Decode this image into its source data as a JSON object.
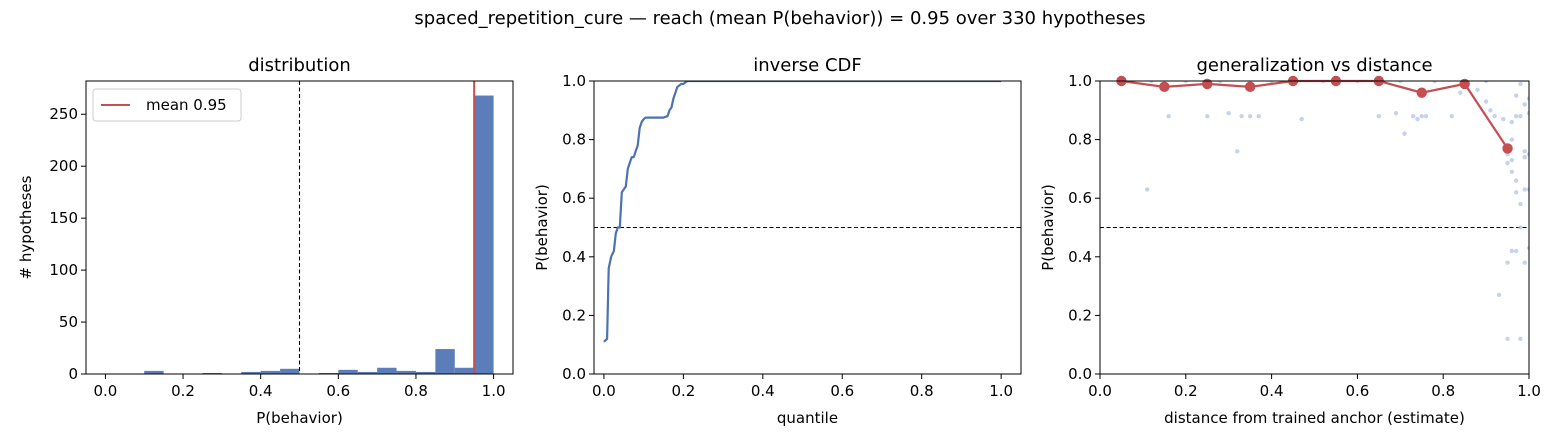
{
  "suptitle": "spaced_repetition_cure  —  reach (mean P(behavior)) = 0.95  over 330 hypotheses",
  "colors": {
    "bar": "#5b7db9",
    "line": "#4c72b0",
    "red": "#c44e52",
    "scatter": "#b4c3e6"
  },
  "chart_data": [
    {
      "type": "bar",
      "title": "distribution",
      "xlabel": "P(behavior)",
      "ylabel": "# hypotheses",
      "xlim": [
        -0.05,
        1.05
      ],
      "ylim": [
        0,
        282
      ],
      "xticks": [
        0.0,
        0.2,
        0.4,
        0.6,
        0.8,
        1.0
      ],
      "xtick_labels": [
        "0.0",
        "0.2",
        "0.4",
        "0.6",
        "0.8",
        "1.0"
      ],
      "yticks": [
        0,
        50,
        100,
        150,
        200,
        250
      ],
      "ytick_labels": [
        "0",
        "50",
        "100",
        "150",
        "200",
        "250"
      ],
      "bin_width": 0.05,
      "bins": [
        {
          "x0": 0.1,
          "count": 3
        },
        {
          "x0": 0.25,
          "count": 1
        },
        {
          "x0": 0.35,
          "count": 2
        },
        {
          "x0": 0.4,
          "count": 3
        },
        {
          "x0": 0.45,
          "count": 5
        },
        {
          "x0": 0.55,
          "count": 1
        },
        {
          "x0": 0.6,
          "count": 4
        },
        {
          "x0": 0.65,
          "count": 2
        },
        {
          "x0": 0.7,
          "count": 6
        },
        {
          "x0": 0.75,
          "count": 3
        },
        {
          "x0": 0.8,
          "count": 2
        },
        {
          "x0": 0.85,
          "count": 24
        },
        {
          "x0": 0.9,
          "count": 6
        },
        {
          "x0": 0.95,
          "count": 268
        }
      ],
      "threshold": 0.5,
      "mean": 0.95,
      "legend": {
        "label": "mean 0.95",
        "position": "upper-left"
      },
      "grid": false
    },
    {
      "type": "line",
      "title": "inverse CDF",
      "xlabel": "quantile",
      "ylabel": "P(behavior)",
      "xlim": [
        -0.025,
        1.05
      ],
      "ylim": [
        0,
        1
      ],
      "xticks": [
        0.0,
        0.2,
        0.4,
        0.6,
        0.8,
        1.0
      ],
      "xtick_labels": [
        "0.0",
        "0.2",
        "0.4",
        "0.6",
        "0.8",
        "1.0"
      ],
      "yticks": [
        0.0,
        0.2,
        0.4,
        0.6,
        0.8,
        1.0
      ],
      "ytick_labels": [
        "0.0",
        "0.2",
        "0.4",
        "0.6",
        "0.8",
        "1.0"
      ],
      "x": [
        0.0,
        0.008,
        0.012,
        0.018,
        0.025,
        0.03,
        0.035,
        0.04,
        0.045,
        0.05,
        0.055,
        0.06,
        0.065,
        0.07,
        0.075,
        0.08,
        0.085,
        0.09,
        0.095,
        0.1,
        0.105,
        0.11,
        0.15,
        0.16,
        0.165,
        0.17,
        0.175,
        0.18,
        0.185,
        0.19,
        0.195,
        0.2,
        0.21,
        0.22,
        0.23,
        1.0
      ],
      "y": [
        0.11,
        0.12,
        0.36,
        0.4,
        0.42,
        0.48,
        0.5,
        0.5,
        0.62,
        0.63,
        0.64,
        0.7,
        0.72,
        0.74,
        0.74,
        0.76,
        0.78,
        0.84,
        0.86,
        0.87,
        0.875,
        0.875,
        0.875,
        0.88,
        0.9,
        0.91,
        0.94,
        0.96,
        0.98,
        0.985,
        0.99,
        0.99,
        1.0,
        1.0,
        1.0,
        1.0
      ],
      "threshold": 0.5,
      "grid": false
    },
    {
      "type": "scatter",
      "title": "generalization vs distance",
      "xlabel": "distance from trained anchor (estimate)",
      "ylabel": "P(behavior)",
      "xlim": [
        0,
        1
      ],
      "ylim": [
        0,
        1
      ],
      "xticks": [
        0.0,
        0.2,
        0.4,
        0.6,
        0.8,
        1.0
      ],
      "xtick_labels": [
        "0.0",
        "0.2",
        "0.4",
        "0.6",
        "0.8",
        "1.0"
      ],
      "yticks": [
        0.0,
        0.2,
        0.4,
        0.6,
        0.8,
        1.0
      ],
      "ytick_labels": [
        "0.0",
        "0.2",
        "0.4",
        "0.6",
        "0.8",
        "1.0"
      ],
      "points": [
        [
          0.11,
          0.63
        ],
        [
          0.16,
          0.88
        ],
        [
          0.25,
          0.88
        ],
        [
          0.3,
          0.89
        ],
        [
          0.32,
          0.76
        ],
        [
          0.33,
          0.88
        ],
        [
          0.35,
          0.88
        ],
        [
          0.37,
          0.88
        ],
        [
          0.47,
          0.87
        ],
        [
          0.65,
          0.88
        ],
        [
          0.69,
          0.89
        ],
        [
          0.71,
          0.82
        ],
        [
          0.73,
          0.88
        ],
        [
          0.74,
          0.87
        ],
        [
          0.75,
          0.88
        ],
        [
          0.76,
          0.88
        ],
        [
          0.82,
          0.88
        ],
        [
          0.84,
          0.96
        ],
        [
          0.88,
          0.97
        ],
        [
          0.9,
          0.93
        ],
        [
          0.91,
          0.9
        ],
        [
          0.92,
          0.88
        ],
        [
          0.93,
          0.27
        ],
        [
          0.94,
          0.87
        ],
        [
          0.95,
          0.12
        ],
        [
          0.95,
          0.72
        ],
        [
          0.95,
          0.77
        ],
        [
          0.95,
          0.75
        ],
        [
          0.95,
          0.38
        ],
        [
          0.96,
          0.42
        ],
        [
          0.96,
          0.69
        ],
        [
          0.96,
          0.73
        ],
        [
          0.96,
          0.8
        ],
        [
          0.96,
          0.86
        ],
        [
          0.97,
          0.42
        ],
        [
          0.97,
          0.62
        ],
        [
          0.97,
          0.66
        ],
        [
          0.97,
          0.88
        ],
        [
          0.97,
          0.95
        ],
        [
          0.98,
          0.58
        ],
        [
          0.98,
          0.12
        ],
        [
          0.98,
          0.5
        ],
        [
          0.98,
          0.88
        ],
        [
          0.98,
          0.99
        ],
        [
          0.99,
          0.38
        ],
        [
          0.99,
          0.63
        ],
        [
          0.99,
          0.74
        ],
        [
          0.99,
          0.76
        ],
        [
          0.99,
          0.92
        ],
        [
          1.0,
          0.43
        ],
        [
          1.0,
          0.63
        ],
        [
          1.0,
          0.94
        ],
        [
          1.0,
          0.75
        ],
        [
          1.0,
          0.89
        ],
        [
          0.05,
          1.0
        ],
        [
          0.12,
          1.0
        ],
        [
          0.2,
          1.0
        ],
        [
          0.28,
          1.0
        ],
        [
          0.4,
          1.0
        ],
        [
          0.52,
          1.0
        ],
        [
          0.6,
          1.0
        ],
        [
          0.7,
          1.0
        ],
        [
          0.78,
          1.0
        ],
        [
          0.9,
          1.0
        ]
      ],
      "binned_x": [
        0.05,
        0.15,
        0.25,
        0.35,
        0.45,
        0.55,
        0.65,
        0.75,
        0.85,
        0.95
      ],
      "binned_y": [
        1.0,
        0.98,
        0.99,
        0.98,
        1.0,
        1.0,
        1.0,
        0.96,
        0.99,
        0.77
      ],
      "threshold": 0.5,
      "grid": false
    }
  ]
}
